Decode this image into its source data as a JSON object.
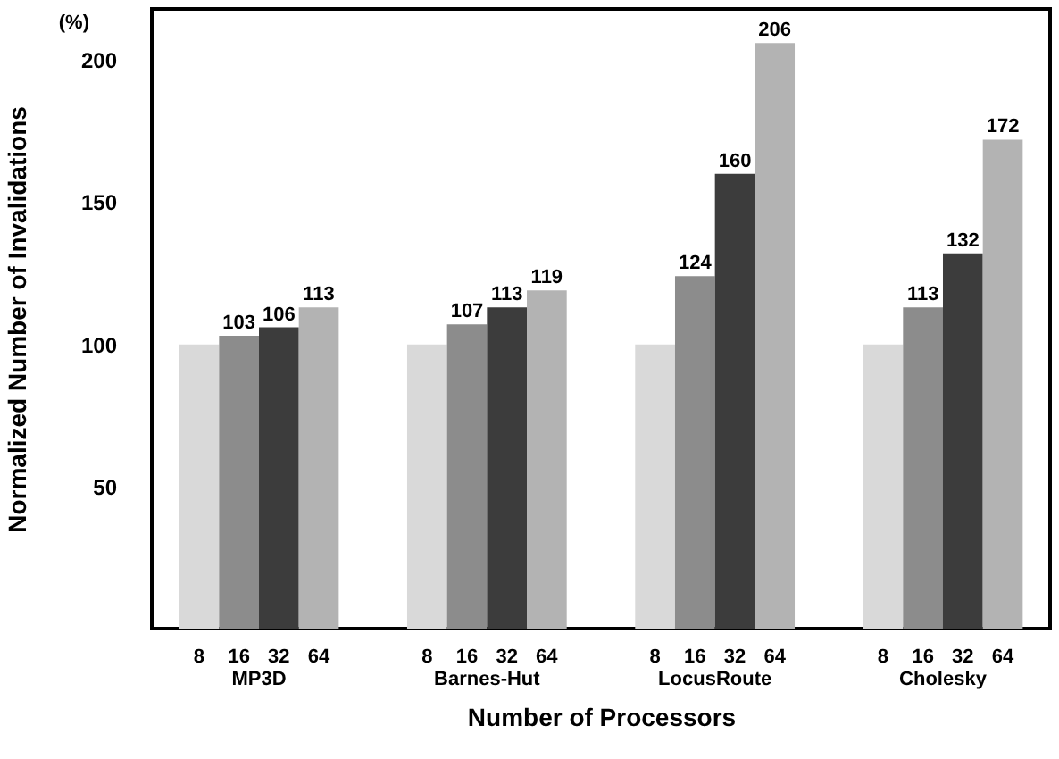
{
  "chart_data": {
    "type": "bar",
    "xlabel": "Number of Processors",
    "ylabel": "Normalized Number of Invalidations",
    "annotations": [
      "(%)"
    ],
    "categories": [
      "MP3D",
      "Barnes-Hut",
      "LocusRoute",
      "Cholesky"
    ],
    "series": [
      {
        "name": "8",
        "color": "#d9d9d9",
        "values": [
          100,
          100,
          100,
          100
        ],
        "value_labels": [
          null,
          null,
          null,
          null
        ]
      },
      {
        "name": "16",
        "color": "#8c8c8c",
        "values": [
          103,
          107,
          124,
          113
        ],
        "value_labels": [
          "103",
          "107",
          "124",
          "113"
        ]
      },
      {
        "name": "32",
        "color": "#3c3c3c",
        "values": [
          106,
          113,
          160,
          132
        ],
        "value_labels": [
          "106",
          "113",
          "160",
          "132"
        ]
      },
      {
        "name": "64",
        "color": "#b3b3b3",
        "values": [
          113,
          119,
          206,
          172
        ],
        "value_labels": [
          "113",
          "119",
          "206",
          "172"
        ]
      }
    ],
    "ylim": [
      0,
      218
    ],
    "yticks": [
      50,
      100,
      150,
      200
    ],
    "grid": false
  }
}
